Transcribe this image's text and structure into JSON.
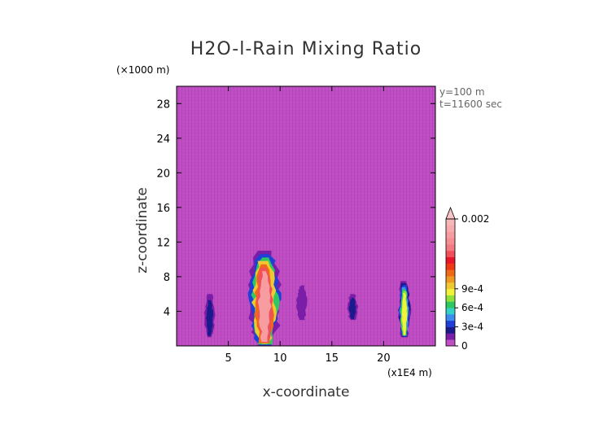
{
  "chart_data": {
    "type": "heatmap",
    "title": "H2O-l-Rain Mixing Ratio",
    "xlabel": "x-coordinate",
    "ylabel": "z-coordinate",
    "x_unit": "(x1E4 m)",
    "y_unit": "(×1000 m)",
    "xlim": [
      0,
      25
    ],
    "ylim": [
      0,
      30
    ],
    "x_ticks": [
      5,
      10,
      15,
      20
    ],
    "y_ticks": [
      4,
      8,
      12,
      16,
      20,
      24,
      28
    ],
    "grid": false,
    "annotations": [
      "y=100 m",
      "t=11600 sec"
    ],
    "background_value": 0,
    "colorbar": {
      "placement": "right",
      "extend": "max",
      "tick_labels": [
        "0",
        "3e-4",
        "6e-4",
        "9e-4",
        "0.002"
      ],
      "tick_values": [
        0,
        0.0003,
        0.0006,
        0.0009,
        0.002
      ],
      "levels": [
        0,
        0.0001,
        0.0002,
        0.0003,
        0.0004,
        0.0005,
        0.0006,
        0.0007,
        0.0008,
        0.0009,
        0.001,
        0.0011,
        0.0012,
        0.0013,
        0.0014,
        0.0015,
        0.0016,
        0.0017,
        0.0018,
        0.0019,
        0.002
      ],
      "colors": [
        "#c14ec5",
        "#7a1ea8",
        "#1a1a8c",
        "#1f3fd6",
        "#3d8cf0",
        "#34d1c8",
        "#2fc860",
        "#8fe03a",
        "#f2f23a",
        "#f0c832",
        "#ee9a22",
        "#ef6a18",
        "#ee3a12",
        "#e8142a",
        "#f0505a",
        "#f47a82",
        "#f68e92",
        "#f79ca0",
        "#f8aaae",
        "#f9b6b9"
      ],
      "extend_color": "#fbc4c6"
    },
    "features": [
      {
        "x": 8.5,
        "z_min": 0,
        "z_max": 11,
        "max_value": 0.002
      },
      {
        "x": 3.2,
        "z_min": 1,
        "z_max": 6,
        "max_value": 0.0003
      },
      {
        "x": 12.1,
        "z_min": 3,
        "z_max": 7,
        "max_value": 0.0002
      },
      {
        "x": 17.0,
        "z_min": 3,
        "z_max": 6,
        "max_value": 0.0003
      },
      {
        "x": 22.0,
        "z_min": 1,
        "z_max": 7.5,
        "max_value": 0.001
      }
    ]
  }
}
